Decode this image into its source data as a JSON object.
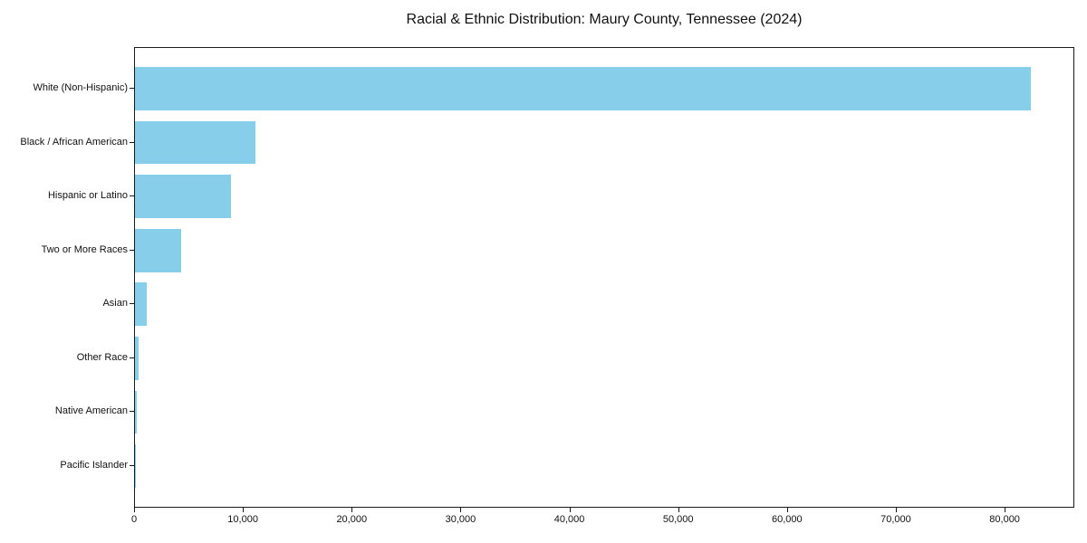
{
  "figure": {
    "title": "Racial & Ethnic Distribution: Maury County, Tennessee (2024)"
  },
  "chart_data": {
    "type": "bar",
    "orientation": "horizontal",
    "title": "Racial & Ethnic Distribution: Maury County, Tennessee (2024)",
    "categories": [
      "White (Non-Hispanic)",
      "Black / African American",
      "Hispanic or Latino",
      "Two or More Races",
      "Asian",
      "Other Race",
      "Native American",
      "Pacific Islander"
    ],
    "values": [
      82300,
      11100,
      8800,
      4270,
      1080,
      350,
      150,
      50
    ],
    "xlabel": "",
    "ylabel": "",
    "xlim": [
      0,
      86400
    ],
    "xticks": [
      0,
      10000,
      20000,
      30000,
      40000,
      50000,
      60000,
      70000,
      80000
    ],
    "xtick_labels": [
      "0",
      "10,000",
      "20,000",
      "30,000",
      "40,000",
      "50,000",
      "60,000",
      "70,000",
      "80,000"
    ],
    "bar_color": "#87CEEB",
    "grid": false,
    "legend": null,
    "sorted": "descending"
  }
}
